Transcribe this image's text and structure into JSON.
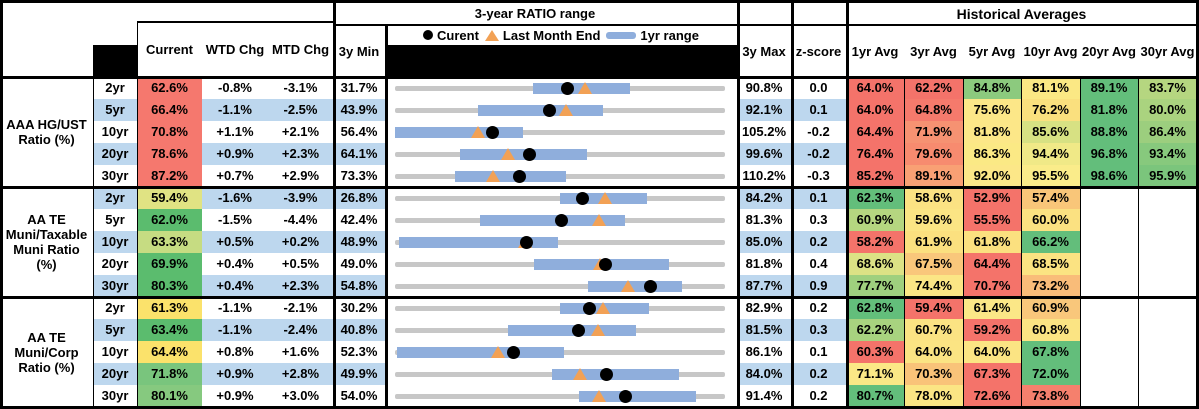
{
  "header": {
    "chart_section": "3-year RATIO range",
    "historical": "Historical Averages",
    "col_current": "Current",
    "col_wtd": "WTD Chg",
    "col_mtd": "MTD Chg",
    "col_3y_min": "3y Min",
    "col_3y_max": "3y Max",
    "col_zscore": "z-score",
    "avg_cols": [
      "1yr Avg",
      "3yr Avg",
      "5yr Avg",
      "10yr Avg",
      "20yr Avg",
      "30yr Avg"
    ]
  },
  "legend": {
    "current": "Curent",
    "last_month": "Last Month End",
    "range": "1yr range"
  },
  "colors": {
    "stripe_blue": "#BDD7EE",
    "range_bar_blue": "#8FAEDC",
    "track_gray": "#C7C7C7",
    "triangle_orange": "#F2A155",
    "dot_black": "#000000"
  },
  "chart_data": {
    "type": "table",
    "note": "Each row has an inline 3-year range chart: gray track spans 3y Min..3y Max, blue bar = 1yr range, black dot = current, orange triangle = last month end",
    "groups": [
      {
        "label": "AAA HG/UST\nRatio (%)",
        "rows": [
          {
            "tenor": "2yr",
            "current": "62.6%",
            "current_bg": "#F5786E",
            "wtd": "-0.8%",
            "mtd": "-3.1%",
            "min3y": "31.7%",
            "max3y": "90.8%",
            "z": "0.0",
            "min_v": 31.7,
            "max_v": 90.8,
            "cur_v": 62.6,
            "lme_v": 65.7,
            "range_1yr": [
              56.5,
              73.7
            ],
            "avgs": [
              "64.0%",
              "62.2%",
              "84.8%",
              "81.1%",
              "89.1%",
              "83.7%"
            ],
            "avg_bg": [
              "#F4736A",
              "#F4736A",
              "#8CCA7E",
              "#FBE884",
              "#63BE7B",
              "#B5D680"
            ]
          },
          {
            "tenor": "5yr",
            "current": "66.4%",
            "current_bg": "#F5786E",
            "wtd": "-1.1%",
            "mtd": "-2.5%",
            "min3y": "43.9%",
            "max3y": "92.1%",
            "z": "0.1",
            "min_v": 43.9,
            "max_v": 92.1,
            "cur_v": 66.4,
            "lme_v": 68.9,
            "range_1yr": [
              56.0,
              74.3
            ],
            "avgs": [
              "64.0%",
              "64.8%",
              "75.6%",
              "76.2%",
              "81.8%",
              "80.0%"
            ],
            "avg_bg": [
              "#F4736A",
              "#F57A6C",
              "#FCE788",
              "#FAE07E",
              "#63BE7B",
              "#AAD37F"
            ]
          },
          {
            "tenor": "10yr",
            "current": "70.8%",
            "current_bg": "#F5786E",
            "wtd": "+1.1%",
            "mtd": "+2.1%",
            "min3y": "56.4%",
            "max3y": "105.2%",
            "z": "-0.2",
            "min_v": 56.4,
            "max_v": 105.2,
            "cur_v": 70.8,
            "lme_v": 68.7,
            "range_1yr": [
              56.4,
              75.4
            ],
            "avgs": [
              "64.4%",
              "71.9%",
              "81.8%",
              "85.6%",
              "88.8%",
              "86.4%"
            ],
            "avg_bg": [
              "#F4736A",
              "#F69272",
              "#FCE788",
              "#D7E183",
              "#63BE7B",
              "#9CCE7E"
            ]
          },
          {
            "tenor": "20yr",
            "current": "78.6%",
            "current_bg": "#F5786E",
            "wtd": "+0.9%",
            "mtd": "+2.3%",
            "min3y": "64.1%",
            "max3y": "99.6%",
            "z": "-0.2",
            "min_v": 64.1,
            "max_v": 99.6,
            "cur_v": 78.6,
            "lme_v": 76.3,
            "range_1yr": [
              71.1,
              84.8
            ],
            "avgs": [
              "76.4%",
              "79.6%",
              "86.3%",
              "94.4%",
              "96.8%",
              "93.4%"
            ],
            "avg_bg": [
              "#F4736A",
              "#F78B6F",
              "#FBE985",
              "#F0E987",
              "#63BE7B",
              "#87C97D"
            ]
          },
          {
            "tenor": "30yr",
            "current": "87.2%",
            "current_bg": "#F5786E",
            "wtd": "+0.7%",
            "mtd": "+2.9%",
            "min3y": "73.3%",
            "max3y": "110.2%",
            "z": "-0.3",
            "min_v": 73.3,
            "max_v": 110.2,
            "cur_v": 87.2,
            "lme_v": 84.3,
            "range_1yr": [
              80.0,
              92.4
            ],
            "avgs": [
              "85.2%",
              "89.1%",
              "92.0%",
              "95.5%",
              "98.6%",
              "95.9%"
            ],
            "avg_bg": [
              "#F4736A",
              "#F9A074",
              "#FCE788",
              "#FAEC8A",
              "#63BE7B",
              "#7BC57C"
            ]
          }
        ]
      },
      {
        "label": "AA TE\nMuni/Taxable\nMuni Ratio\n(%)",
        "rows": [
          {
            "tenor": "2yr",
            "current": "59.4%",
            "current_bg": "#E0E383",
            "wtd": "-1.6%",
            "mtd": "-3.9%",
            "min3y": "26.8%",
            "max3y": "84.2%",
            "z": "0.1",
            "min_v": 26.8,
            "max_v": 84.2,
            "cur_v": 59.4,
            "lme_v": 63.3,
            "range_1yr": [
              55.5,
              70.6
            ],
            "avgs": [
              "62.3%",
              "58.6%",
              "52.9%",
              "57.4%",
              null,
              null
            ],
            "avg_bg": [
              "#63BE7B",
              "#FBE283",
              "#F4736A",
              "#F9C679",
              null,
              null
            ]
          },
          {
            "tenor": "5yr",
            "current": "62.0%",
            "current_bg": "#5BBC6E",
            "wtd": "-1.5%",
            "mtd": "-4.4%",
            "min3y": "42.4%",
            "max3y": "81.3%",
            "z": "0.3",
            "min_v": 42.4,
            "max_v": 81.3,
            "cur_v": 62.0,
            "lme_v": 66.4,
            "range_1yr": [
              52.4,
              69.5
            ],
            "avgs": [
              "60.9%",
              "59.6%",
              "55.5%",
              "60.0%",
              null,
              null
            ],
            "avg_bg": [
              "#B5D680",
              "#FBE584",
              "#F4736A",
              "#FBE181",
              null,
              null
            ]
          },
          {
            "tenor": "10yr",
            "current": "63.3%",
            "current_bg": "#C6DC82",
            "wtd": "+0.5%",
            "mtd": "+0.2%",
            "min3y": "48.9%",
            "max3y": "85.0%",
            "z": "0.2",
            "min_v": 48.9,
            "max_v": 85.0,
            "cur_v": 63.3,
            "lme_v": 63.1,
            "range_1yr": [
              49.3,
              66.7
            ],
            "avgs": [
              "58.2%",
              "61.9%",
              "61.8%",
              "66.2%",
              null,
              null
            ],
            "avg_bg": [
              "#F4736A",
              "#FBE07F",
              "#FBE07F",
              "#63BE7B",
              null,
              null
            ]
          },
          {
            "tenor": "20yr",
            "current": "69.9%",
            "current_bg": "#5BBC6E",
            "wtd": "+0.4%",
            "mtd": "+0.5%",
            "min3y": "49.0%",
            "max3y": "81.8%",
            "z": "0.4",
            "min_v": 49.0,
            "max_v": 81.8,
            "cur_v": 69.9,
            "lme_v": 69.4,
            "range_1yr": [
              62.8,
              76.2
            ],
            "avgs": [
              "68.6%",
              "67.5%",
              "64.4%",
              "68.5%",
              null,
              null
            ],
            "avg_bg": [
              "#DCE285",
              "#F9C77B",
              "#F4736A",
              "#FBE382",
              null,
              null
            ]
          },
          {
            "tenor": "30yr",
            "current": "80.3%",
            "current_bg": "#5BBC6E",
            "wtd": "+0.4%",
            "mtd": "+2.3%",
            "min3y": "54.8%",
            "max3y": "87.7%",
            "z": "0.9",
            "min_v": 54.8,
            "max_v": 87.7,
            "cur_v": 80.3,
            "lme_v": 78.0,
            "range_1yr": [
              74.0,
              83.4
            ],
            "avgs": [
              "77.7%",
              "74.4%",
              "70.7%",
              "73.2%",
              null,
              null
            ],
            "avg_bg": [
              "#9FD07E",
              "#FBE685",
              "#F4736A",
              "#F9BC79",
              null,
              null
            ]
          }
        ]
      },
      {
        "label": "AA TE\nMuni/Corp\nRatio (%)",
        "rows": [
          {
            "tenor": "2yr",
            "current": "61.3%",
            "current_bg": "#FBE26B",
            "wtd": "-1.1%",
            "mtd": "-2.1%",
            "min3y": "30.2%",
            "max3y": "82.9%",
            "z": "0.2",
            "min_v": 30.2,
            "max_v": 82.9,
            "cur_v": 61.3,
            "lme_v": 63.4,
            "range_1yr": [
              56.6,
              70.8
            ],
            "avgs": [
              "62.8%",
              "59.4%",
              "61.4%",
              "60.9%",
              null,
              null
            ],
            "avg_bg": [
              "#63BE7B",
              "#F4736A",
              "#FBE787",
              "#F9C77B",
              null,
              null
            ]
          },
          {
            "tenor": "5yr",
            "current": "63.4%",
            "current_bg": "#5BBC6E",
            "wtd": "-1.1%",
            "mtd": "-2.4%",
            "min3y": "40.8%",
            "max3y": "81.5%",
            "z": "0.3",
            "min_v": 40.8,
            "max_v": 81.5,
            "cur_v": 63.4,
            "lme_v": 65.8,
            "range_1yr": [
              54.7,
              70.5
            ],
            "avgs": [
              "62.2%",
              "60.7%",
              "59.2%",
              "60.8%",
              null,
              null
            ],
            "avg_bg": [
              "#A8D37F",
              "#FBE383",
              "#F4736A",
              "#FBE483",
              null,
              null
            ]
          },
          {
            "tenor": "10yr",
            "current": "64.4%",
            "current_bg": "#FBE26B",
            "wtd": "+0.8%",
            "mtd": "+1.6%",
            "min3y": "52.3%",
            "max3y": "86.1%",
            "z": "0.1",
            "min_v": 52.3,
            "max_v": 86.1,
            "cur_v": 64.4,
            "lme_v": 62.8,
            "range_1yr": [
              52.5,
              69.6
            ],
            "avgs": [
              "60.3%",
              "64.0%",
              "64.0%",
              "67.8%",
              null,
              null
            ],
            "avg_bg": [
              "#F4736A",
              "#FBE483",
              "#FBE483",
              "#63BE7B",
              null,
              null
            ]
          },
          {
            "tenor": "20yr",
            "current": "71.8%",
            "current_bg": "#79C57D",
            "wtd": "+0.9%",
            "mtd": "+2.8%",
            "min3y": "49.9%",
            "max3y": "84.0%",
            "z": "0.2",
            "min_v": 49.9,
            "max_v": 84.0,
            "cur_v": 71.8,
            "lme_v": 69.0,
            "range_1yr": [
              66.1,
              79.2
            ],
            "avgs": [
              "71.1%",
              "70.3%",
              "67.3%",
              "72.0%",
              null,
              null
            ],
            "avg_bg": [
              "#FBE886",
              "#F9C379",
              "#F4736A",
              "#63BE7B",
              null,
              null
            ]
          },
          {
            "tenor": "30yr",
            "current": "80.1%",
            "current_bg": "#86C97F",
            "wtd": "+0.9%",
            "mtd": "+3.0%",
            "min3y": "54.0%",
            "max3y": "91.4%",
            "z": "0.2",
            "min_v": 54.0,
            "max_v": 91.4,
            "cur_v": 80.1,
            "lme_v": 77.1,
            "range_1yr": [
              74.8,
              88.1
            ],
            "avgs": [
              "80.7%",
              "78.0%",
              "72.6%",
              "73.8%",
              null,
              null
            ],
            "avg_bg": [
              "#63BE7B",
              "#FBE584",
              "#F4736A",
              "#F5806D",
              null,
              null
            ]
          }
        ]
      }
    ]
  }
}
